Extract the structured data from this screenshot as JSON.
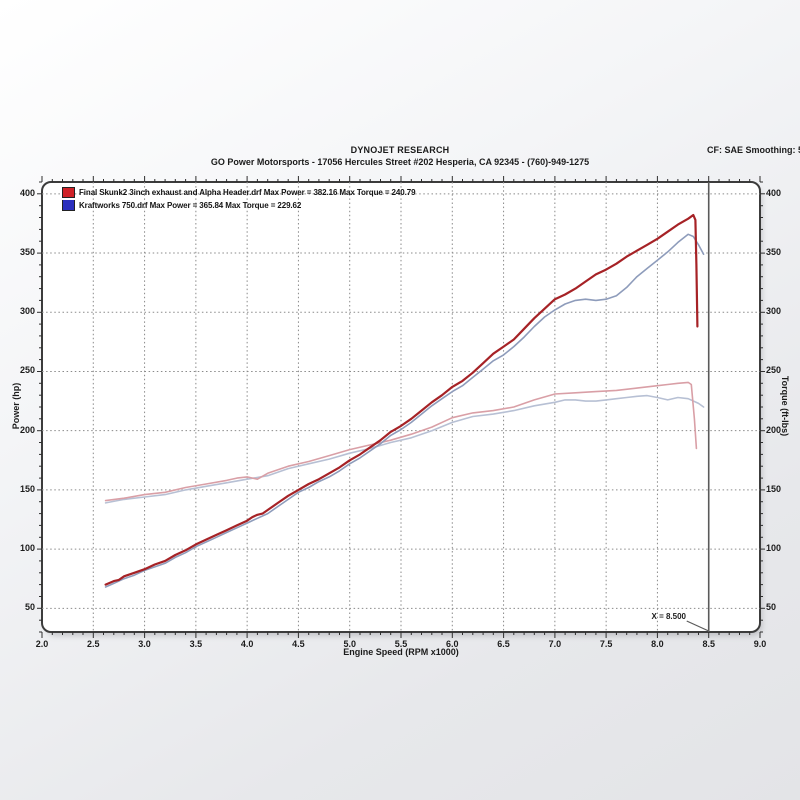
{
  "header": {
    "title": "DYNOJET RESEARCH",
    "subtitle": "GO Power Motorsports - 17056 Hercules Street #202 Hesperia, CA 92345 - (760)-949-1275",
    "correction_info": "CF: SAE  Smoothing: 5"
  },
  "legend": {
    "entries": [
      {
        "label": "Final Skunk2 3inch exhaust and Alpha Header.drf Max Power = 382.16 Max Torque = 240.79",
        "color": "#cf2127"
      },
      {
        "label": "Kraftworks 750.drf Max Power = 365.84 Max Torque = 229.62",
        "color": "#2b2fbe"
      }
    ]
  },
  "chart_data": {
    "type": "line",
    "title": "DYNOJET RESEARCH",
    "xlabel": "Engine Speed (RPM x1000)",
    "ylabel_left": "Power (hp)",
    "ylabel_right": "Torque (ft-lbs)",
    "xlim": [
      2.0,
      9.0
    ],
    "ylim": [
      30,
      410
    ],
    "x_ticks": [
      "2.0",
      "2.5",
      "3.0",
      "3.5",
      "4.0",
      "4.5",
      "5.0",
      "5.5",
      "6.0",
      "6.5",
      "7.0",
      "7.5",
      "8.0",
      "8.5",
      "9.0"
    ],
    "y_ticks": [
      50,
      100,
      150,
      200,
      250,
      300,
      350,
      400
    ],
    "x_minor_step": 0.1,
    "y_minor_step": 10,
    "grid": "dotted-major",
    "cursor": {
      "x": 8.5,
      "label": "X = 8.500"
    },
    "series": [
      {
        "name": "power-final-skunk2",
        "run": "Final Skunk2 3inch exhaust and Alpha Header.drf",
        "unit": "hp",
        "max": 382.16,
        "color": "#a62226",
        "width": 2.2,
        "points": [
          [
            2.62,
            70
          ],
          [
            2.7,
            73
          ],
          [
            2.75,
            74
          ],
          [
            2.8,
            77
          ],
          [
            2.9,
            80
          ],
          [
            3.0,
            83
          ],
          [
            3.1,
            87
          ],
          [
            3.2,
            90
          ],
          [
            3.3,
            95
          ],
          [
            3.4,
            99
          ],
          [
            3.5,
            104
          ],
          [
            3.6,
            108
          ],
          [
            3.7,
            112
          ],
          [
            3.8,
            116
          ],
          [
            3.9,
            120
          ],
          [
            4.0,
            124
          ],
          [
            4.05,
            127
          ],
          [
            4.1,
            129
          ],
          [
            4.15,
            130
          ],
          [
            4.2,
            133
          ],
          [
            4.3,
            139
          ],
          [
            4.4,
            145
          ],
          [
            4.5,
            150
          ],
          [
            4.6,
            155
          ],
          [
            4.7,
            159
          ],
          [
            4.8,
            164
          ],
          [
            4.9,
            169
          ],
          [
            5.0,
            175
          ],
          [
            5.1,
            180
          ],
          [
            5.2,
            186
          ],
          [
            5.3,
            192
          ],
          [
            5.4,
            199
          ],
          [
            5.5,
            204
          ],
          [
            5.6,
            210
          ],
          [
            5.7,
            217
          ],
          [
            5.8,
            224
          ],
          [
            5.9,
            230
          ],
          [
            6.0,
            237
          ],
          [
            6.1,
            242
          ],
          [
            6.2,
            249
          ],
          [
            6.3,
            257
          ],
          [
            6.4,
            265
          ],
          [
            6.5,
            271
          ],
          [
            6.6,
            277
          ],
          [
            6.7,
            286
          ],
          [
            6.8,
            295
          ],
          [
            6.9,
            303
          ],
          [
            7.0,
            311
          ],
          [
            7.1,
            315
          ],
          [
            7.2,
            320
          ],
          [
            7.3,
            326
          ],
          [
            7.4,
            332
          ],
          [
            7.5,
            336
          ],
          [
            7.6,
            341
          ],
          [
            7.7,
            347
          ],
          [
            7.8,
            352
          ],
          [
            7.9,
            357
          ],
          [
            8.0,
            362
          ],
          [
            8.1,
            368
          ],
          [
            8.2,
            374
          ],
          [
            8.3,
            379
          ],
          [
            8.35,
            382.16
          ],
          [
            8.37,
            378
          ],
          [
            8.38,
            340
          ],
          [
            8.39,
            288
          ]
        ]
      },
      {
        "name": "power-kraftworks-750",
        "run": "Kraftworks 750.drf",
        "unit": "hp",
        "max": 365.84,
        "color": "#8e9cbb",
        "width": 1.6,
        "points": [
          [
            2.62,
            68
          ],
          [
            2.7,
            71
          ],
          [
            2.8,
            75
          ],
          [
            2.9,
            78
          ],
          [
            3.0,
            82
          ],
          [
            3.1,
            85
          ],
          [
            3.2,
            88
          ],
          [
            3.3,
            93
          ],
          [
            3.4,
            97
          ],
          [
            3.5,
            102
          ],
          [
            3.6,
            106
          ],
          [
            3.7,
            110
          ],
          [
            3.8,
            114
          ],
          [
            3.9,
            118
          ],
          [
            4.0,
            122
          ],
          [
            4.1,
            126
          ],
          [
            4.2,
            130
          ],
          [
            4.3,
            136
          ],
          [
            4.4,
            142
          ],
          [
            4.5,
            148
          ],
          [
            4.6,
            152
          ],
          [
            4.7,
            157
          ],
          [
            4.8,
            161
          ],
          [
            4.9,
            166
          ],
          [
            5.0,
            172
          ],
          [
            5.1,
            177
          ],
          [
            5.2,
            183
          ],
          [
            5.3,
            189
          ],
          [
            5.4,
            196
          ],
          [
            5.5,
            201
          ],
          [
            5.6,
            207
          ],
          [
            5.7,
            214
          ],
          [
            5.8,
            221
          ],
          [
            5.9,
            227
          ],
          [
            6.0,
            233
          ],
          [
            6.1,
            238
          ],
          [
            6.2,
            245
          ],
          [
            6.3,
            252
          ],
          [
            6.4,
            259
          ],
          [
            6.5,
            264
          ],
          [
            6.6,
            271
          ],
          [
            6.7,
            279
          ],
          [
            6.8,
            288
          ],
          [
            6.9,
            296
          ],
          [
            7.0,
            302
          ],
          [
            7.1,
            307
          ],
          [
            7.2,
            310
          ],
          [
            7.3,
            311
          ],
          [
            7.4,
            310
          ],
          [
            7.5,
            311
          ],
          [
            7.6,
            314
          ],
          [
            7.7,
            321
          ],
          [
            7.8,
            330
          ],
          [
            7.9,
            337
          ],
          [
            8.0,
            344
          ],
          [
            8.1,
            351
          ],
          [
            8.2,
            359
          ],
          [
            8.3,
            365.84
          ],
          [
            8.35,
            364
          ],
          [
            8.4,
            357
          ],
          [
            8.45,
            349
          ]
        ]
      },
      {
        "name": "torque-final-skunk2",
        "run": "Final Skunk2 3inch exhaust and Alpha Header.drf",
        "unit": "ft-lbs",
        "max": 240.79,
        "color": "#d99fa6",
        "width": 1.6,
        "points": [
          [
            2.62,
            141
          ],
          [
            2.8,
            143
          ],
          [
            3.0,
            146
          ],
          [
            3.2,
            148
          ],
          [
            3.4,
            152
          ],
          [
            3.6,
            155
          ],
          [
            3.8,
            158
          ],
          [
            3.9,
            160
          ],
          [
            4.0,
            161
          ],
          [
            4.1,
            159
          ],
          [
            4.2,
            164
          ],
          [
            4.3,
            167
          ],
          [
            4.4,
            170
          ],
          [
            4.6,
            174
          ],
          [
            4.8,
            179
          ],
          [
            5.0,
            184
          ],
          [
            5.2,
            188
          ],
          [
            5.4,
            192
          ],
          [
            5.6,
            197
          ],
          [
            5.8,
            203
          ],
          [
            6.0,
            211
          ],
          [
            6.2,
            215
          ],
          [
            6.4,
            217
          ],
          [
            6.6,
            220
          ],
          [
            6.8,
            226
          ],
          [
            7.0,
            231
          ],
          [
            7.2,
            232
          ],
          [
            7.4,
            233
          ],
          [
            7.6,
            234
          ],
          [
            7.8,
            236
          ],
          [
            8.0,
            238
          ],
          [
            8.1,
            239
          ],
          [
            8.2,
            240
          ],
          [
            8.3,
            240.79
          ],
          [
            8.33,
            239
          ],
          [
            8.36,
            210
          ],
          [
            8.38,
            185
          ]
        ]
      },
      {
        "name": "torque-kraftworks-750",
        "run": "Kraftworks 750.drf",
        "unit": "ft-lbs",
        "max": 229.62,
        "color": "#b7c0d4",
        "width": 1.6,
        "points": [
          [
            2.62,
            139
          ],
          [
            2.8,
            142
          ],
          [
            3.0,
            144
          ],
          [
            3.2,
            146
          ],
          [
            3.4,
            150
          ],
          [
            3.6,
            153
          ],
          [
            3.8,
            156
          ],
          [
            4.0,
            159
          ],
          [
            4.2,
            162
          ],
          [
            4.4,
            168
          ],
          [
            4.6,
            172
          ],
          [
            4.8,
            176
          ],
          [
            5.0,
            181
          ],
          [
            5.2,
            185
          ],
          [
            5.4,
            190
          ],
          [
            5.6,
            194
          ],
          [
            5.8,
            200
          ],
          [
            6.0,
            207
          ],
          [
            6.2,
            212
          ],
          [
            6.4,
            214
          ],
          [
            6.6,
            217
          ],
          [
            6.8,
            221
          ],
          [
            7.0,
            224
          ],
          [
            7.1,
            226
          ],
          [
            7.2,
            226
          ],
          [
            7.3,
            225
          ],
          [
            7.4,
            225
          ],
          [
            7.5,
            226
          ],
          [
            7.6,
            227
          ],
          [
            7.7,
            228
          ],
          [
            7.8,
            229
          ],
          [
            7.9,
            229.62
          ],
          [
            8.0,
            228
          ],
          [
            8.1,
            226
          ],
          [
            8.2,
            228
          ],
          [
            8.3,
            227
          ],
          [
            8.4,
            223
          ],
          [
            8.45,
            220
          ]
        ]
      }
    ],
    "colors": {
      "grid": "#8a8a8a",
      "plot_border": "#3c3c3c",
      "plot_bg": "#ffffff",
      "cursor": "#5a5a5a",
      "text": "#1b1b1b"
    }
  }
}
